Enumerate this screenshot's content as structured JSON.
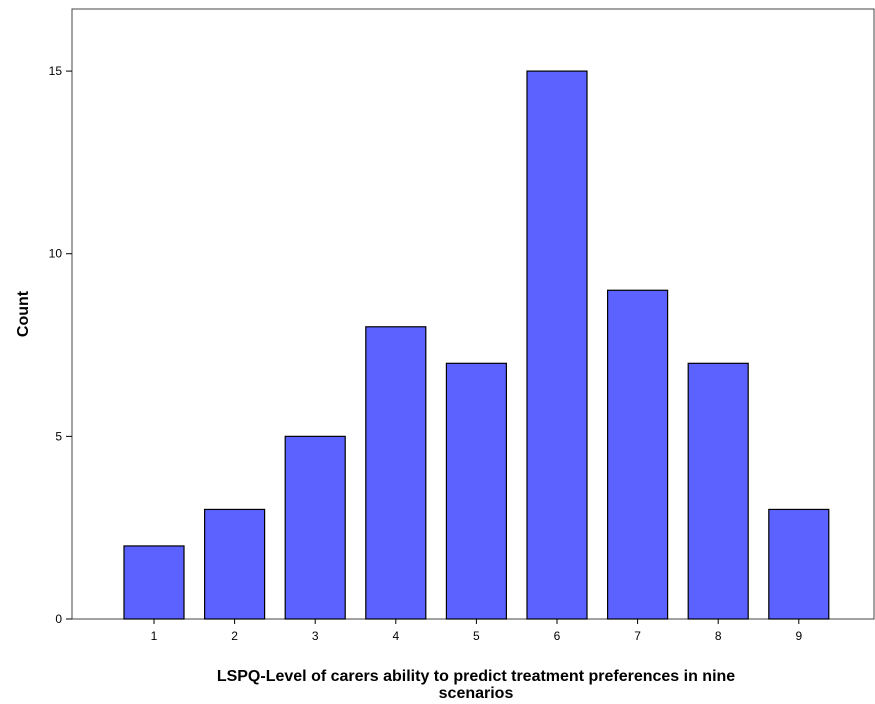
{
  "chart_data": {
    "type": "bar",
    "categories": [
      "1",
      "2",
      "3",
      "4",
      "5",
      "6",
      "7",
      "8",
      "9"
    ],
    "values": [
      2,
      3,
      5,
      8,
      7,
      15,
      9,
      7,
      3
    ],
    "title": "",
    "xlabel_lines": [
      "LSPQ-Level of carers ability to predict treatment preferences in nine",
      "scenarios"
    ],
    "ylabel": "Count",
    "ylim": [
      0,
      16.7
    ],
    "yticks": [
      "0",
      "5",
      "10",
      "15"
    ],
    "grid": false,
    "bar_color": "#5b62ff",
    "bar_edge_color": "#000000"
  }
}
